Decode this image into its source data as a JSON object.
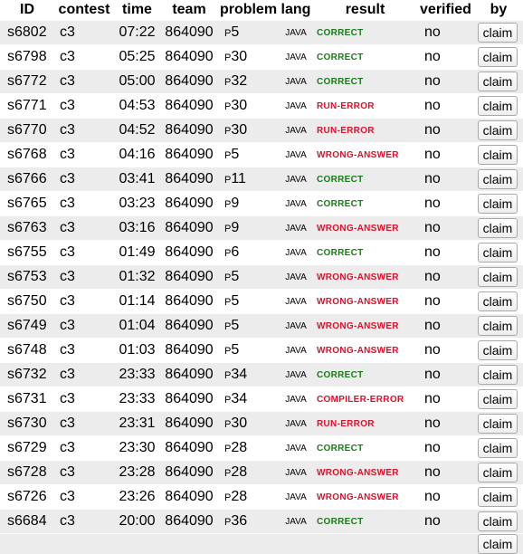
{
  "headers": {
    "id": "ID",
    "contest": "contest",
    "time": "time",
    "team": "team",
    "problem": "problem",
    "lang": "lang",
    "result": "result",
    "verified": "verified",
    "by": "by"
  },
  "colors": {
    "correct": "#1a7a1a",
    "error": "#e0102a",
    "row_alt": "#ececec"
  },
  "claim_label": "claim",
  "rows": [
    {
      "id": "s6802",
      "contest": "c3",
      "time": "07:22",
      "team": "864090",
      "problem_prefix": "P",
      "problem_num": "5",
      "lang": "JAVA",
      "result": "CORRECT",
      "status": "good",
      "verified": "no"
    },
    {
      "id": "s6798",
      "contest": "c3",
      "time": "05:25",
      "team": "864090",
      "problem_prefix": "P",
      "problem_num": "30",
      "lang": "JAVA",
      "result": "CORRECT",
      "status": "good",
      "verified": "no"
    },
    {
      "id": "s6772",
      "contest": "c3",
      "time": "05:00",
      "team": "864090",
      "problem_prefix": "P",
      "problem_num": "32",
      "lang": "JAVA",
      "result": "CORRECT",
      "status": "good",
      "verified": "no"
    },
    {
      "id": "s6771",
      "contest": "c3",
      "time": "04:53",
      "team": "864090",
      "problem_prefix": "P",
      "problem_num": "30",
      "lang": "JAVA",
      "result": "RUN-ERROR",
      "status": "bad",
      "verified": "no"
    },
    {
      "id": "s6770",
      "contest": "c3",
      "time": "04:52",
      "team": "864090",
      "problem_prefix": "P",
      "problem_num": "30",
      "lang": "JAVA",
      "result": "RUN-ERROR",
      "status": "bad",
      "verified": "no"
    },
    {
      "id": "s6768",
      "contest": "c3",
      "time": "04:16",
      "team": "864090",
      "problem_prefix": "P",
      "problem_num": "5",
      "lang": "JAVA",
      "result": "WRONG-ANSWER",
      "status": "bad",
      "verified": "no"
    },
    {
      "id": "s6766",
      "contest": "c3",
      "time": "03:41",
      "team": "864090",
      "problem_prefix": "P",
      "problem_num": "11",
      "lang": "JAVA",
      "result": "CORRECT",
      "status": "good",
      "verified": "no"
    },
    {
      "id": "s6765",
      "contest": "c3",
      "time": "03:23",
      "team": "864090",
      "problem_prefix": "P",
      "problem_num": "9",
      "lang": "JAVA",
      "result": "CORRECT",
      "status": "good",
      "verified": "no"
    },
    {
      "id": "s6763",
      "contest": "c3",
      "time": "03:16",
      "team": "864090",
      "problem_prefix": "P",
      "problem_num": "9",
      "lang": "JAVA",
      "result": "WRONG-ANSWER",
      "status": "bad",
      "verified": "no"
    },
    {
      "id": "s6755",
      "contest": "c3",
      "time": "01:49",
      "team": "864090",
      "problem_prefix": "P",
      "problem_num": "6",
      "lang": "JAVA",
      "result": "CORRECT",
      "status": "good",
      "verified": "no"
    },
    {
      "id": "s6753",
      "contest": "c3",
      "time": "01:32",
      "team": "864090",
      "problem_prefix": "P",
      "problem_num": "5",
      "lang": "JAVA",
      "result": "WRONG-ANSWER",
      "status": "bad",
      "verified": "no"
    },
    {
      "id": "s6750",
      "contest": "c3",
      "time": "01:14",
      "team": "864090",
      "problem_prefix": "P",
      "problem_num": "5",
      "lang": "JAVA",
      "result": "WRONG-ANSWER",
      "status": "bad",
      "verified": "no"
    },
    {
      "id": "s6749",
      "contest": "c3",
      "time": "01:04",
      "team": "864090",
      "problem_prefix": "P",
      "problem_num": "5",
      "lang": "JAVA",
      "result": "WRONG-ANSWER",
      "status": "bad",
      "verified": "no"
    },
    {
      "id": "s6748",
      "contest": "c3",
      "time": "01:03",
      "team": "864090",
      "problem_prefix": "P",
      "problem_num": "5",
      "lang": "JAVA",
      "result": "WRONG-ANSWER",
      "status": "bad",
      "verified": "no"
    },
    {
      "id": "s6732",
      "contest": "c3",
      "time": "23:33",
      "team": "864090",
      "problem_prefix": "P",
      "problem_num": "34",
      "lang": "JAVA",
      "result": "CORRECT",
      "status": "good",
      "verified": "no"
    },
    {
      "id": "s6731",
      "contest": "c3",
      "time": "23:33",
      "team": "864090",
      "problem_prefix": "P",
      "problem_num": "34",
      "lang": "JAVA",
      "result": "COMPILER-ERROR",
      "status": "bad",
      "verified": "no"
    },
    {
      "id": "s6730",
      "contest": "c3",
      "time": "23:31",
      "team": "864090",
      "problem_prefix": "P",
      "problem_num": "30",
      "lang": "JAVA",
      "result": "RUN-ERROR",
      "status": "bad",
      "verified": "no"
    },
    {
      "id": "s6729",
      "contest": "c3",
      "time": "23:30",
      "team": "864090",
      "problem_prefix": "P",
      "problem_num": "28",
      "lang": "JAVA",
      "result": "CORRECT",
      "status": "good",
      "verified": "no"
    },
    {
      "id": "s6728",
      "contest": "c3",
      "time": "23:28",
      "team": "864090",
      "problem_prefix": "P",
      "problem_num": "28",
      "lang": "JAVA",
      "result": "WRONG-ANSWER",
      "status": "bad",
      "verified": "no"
    },
    {
      "id": "s6726",
      "contest": "c3",
      "time": "23:26",
      "team": "864090",
      "problem_prefix": "P",
      "problem_num": "28",
      "lang": "JAVA",
      "result": "WRONG-ANSWER",
      "status": "bad",
      "verified": "no"
    },
    {
      "id": "s6684",
      "contest": "c3",
      "time": "20:00",
      "team": "864090",
      "problem_prefix": "P",
      "problem_num": "36",
      "lang": "JAVA",
      "result": "CORRECT",
      "status": "good",
      "verified": "no"
    }
  ]
}
